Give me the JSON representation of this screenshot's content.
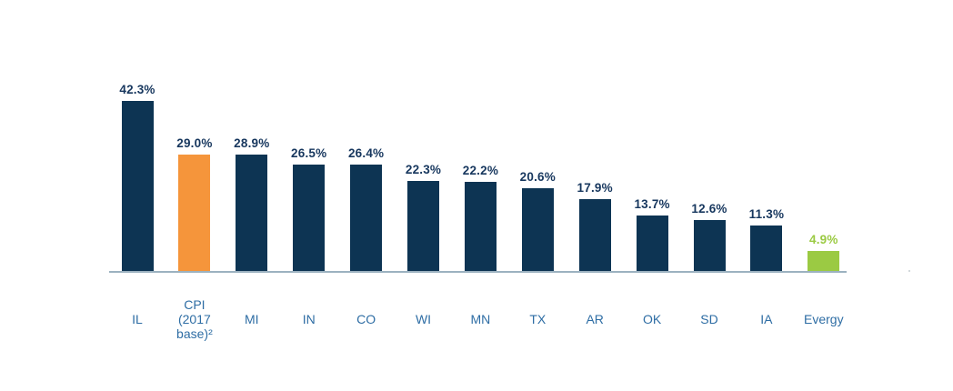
{
  "chart_data": {
    "type": "bar",
    "title": "",
    "xlabel": "",
    "ylabel": "",
    "ylim": [
      0,
      45
    ],
    "grid": false,
    "legend": null,
    "categories": [
      "IL",
      "CPI\n(2017\nbase)²",
      "MI",
      "IN",
      "CO",
      "WI",
      "MN",
      "TX",
      "AR",
      "OK",
      "SD",
      "IA",
      "Evergy"
    ],
    "values": [
      42.3,
      29.0,
      28.9,
      26.5,
      26.4,
      22.3,
      22.2,
      20.6,
      17.9,
      13.7,
      12.6,
      11.3,
      4.9
    ],
    "value_labels": [
      "42.3%",
      "29.0%",
      "28.9%",
      "26.5%",
      "26.4%",
      "22.3%",
      "22.2%",
      "20.6%",
      "17.9%",
      "13.7%",
      "12.6%",
      "11.3%",
      "4.9%"
    ],
    "bar_colors": [
      "navy",
      "orange",
      "navy",
      "navy",
      "navy",
      "navy",
      "navy",
      "navy",
      "navy",
      "navy",
      "navy",
      "navy",
      "green"
    ]
  },
  "colors": {
    "navy": "#0d3453",
    "orange": "#f5953b",
    "green": "#9bca43",
    "value_label_default": "#17375e",
    "value_label_green": "#9bca43",
    "category_label": "#2e6da4",
    "axis_line": "#9cb2c0"
  }
}
